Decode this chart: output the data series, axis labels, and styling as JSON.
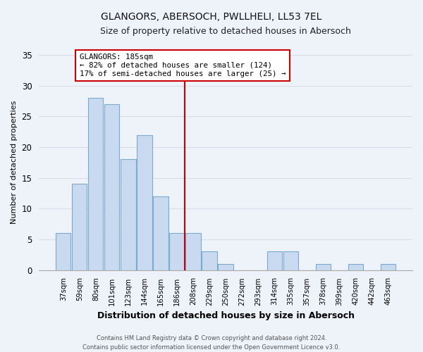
{
  "title": "GLANGORS, ABERSOCH, PWLLHELI, LL53 7EL",
  "subtitle": "Size of property relative to detached houses in Abersoch",
  "xlabel": "Distribution of detached houses by size in Abersoch",
  "ylabel": "Number of detached properties",
  "footer_line1": "Contains HM Land Registry data © Crown copyright and database right 2024.",
  "footer_line2": "Contains public sector information licensed under the Open Government Licence v3.0.",
  "bar_labels": [
    "37sqm",
    "59sqm",
    "80sqm",
    "101sqm",
    "123sqm",
    "144sqm",
    "165sqm",
    "186sqm",
    "208sqm",
    "229sqm",
    "250sqm",
    "272sqm",
    "293sqm",
    "314sqm",
    "335sqm",
    "357sqm",
    "378sqm",
    "399sqm",
    "420sqm",
    "442sqm",
    "463sqm"
  ],
  "bar_values": [
    6,
    14,
    28,
    27,
    18,
    22,
    12,
    6,
    6,
    3,
    1,
    0,
    0,
    3,
    3,
    0,
    1,
    0,
    1,
    0,
    1
  ],
  "bar_color": "#c8d9f0",
  "bar_edge_color": "#7aabcf",
  "vline_index": 7,
  "vline_color": "#cc0000",
  "annotation_text_line1": "GLANGORS: 185sqm",
  "annotation_text_line2": "← 82% of detached houses are smaller (124)",
  "annotation_text_line3": "17% of semi-detached houses are larger (25) →",
  "annotation_box_color": "#ffffff",
  "annotation_box_edge": "#cc0000",
  "ylim": [
    0,
    35
  ],
  "yticks": [
    0,
    5,
    10,
    15,
    20,
    25,
    30,
    35
  ],
  "background_color": "#eef2f9",
  "grid_color": "#d8dde8",
  "title_fontsize": 10,
  "subtitle_fontsize": 9
}
